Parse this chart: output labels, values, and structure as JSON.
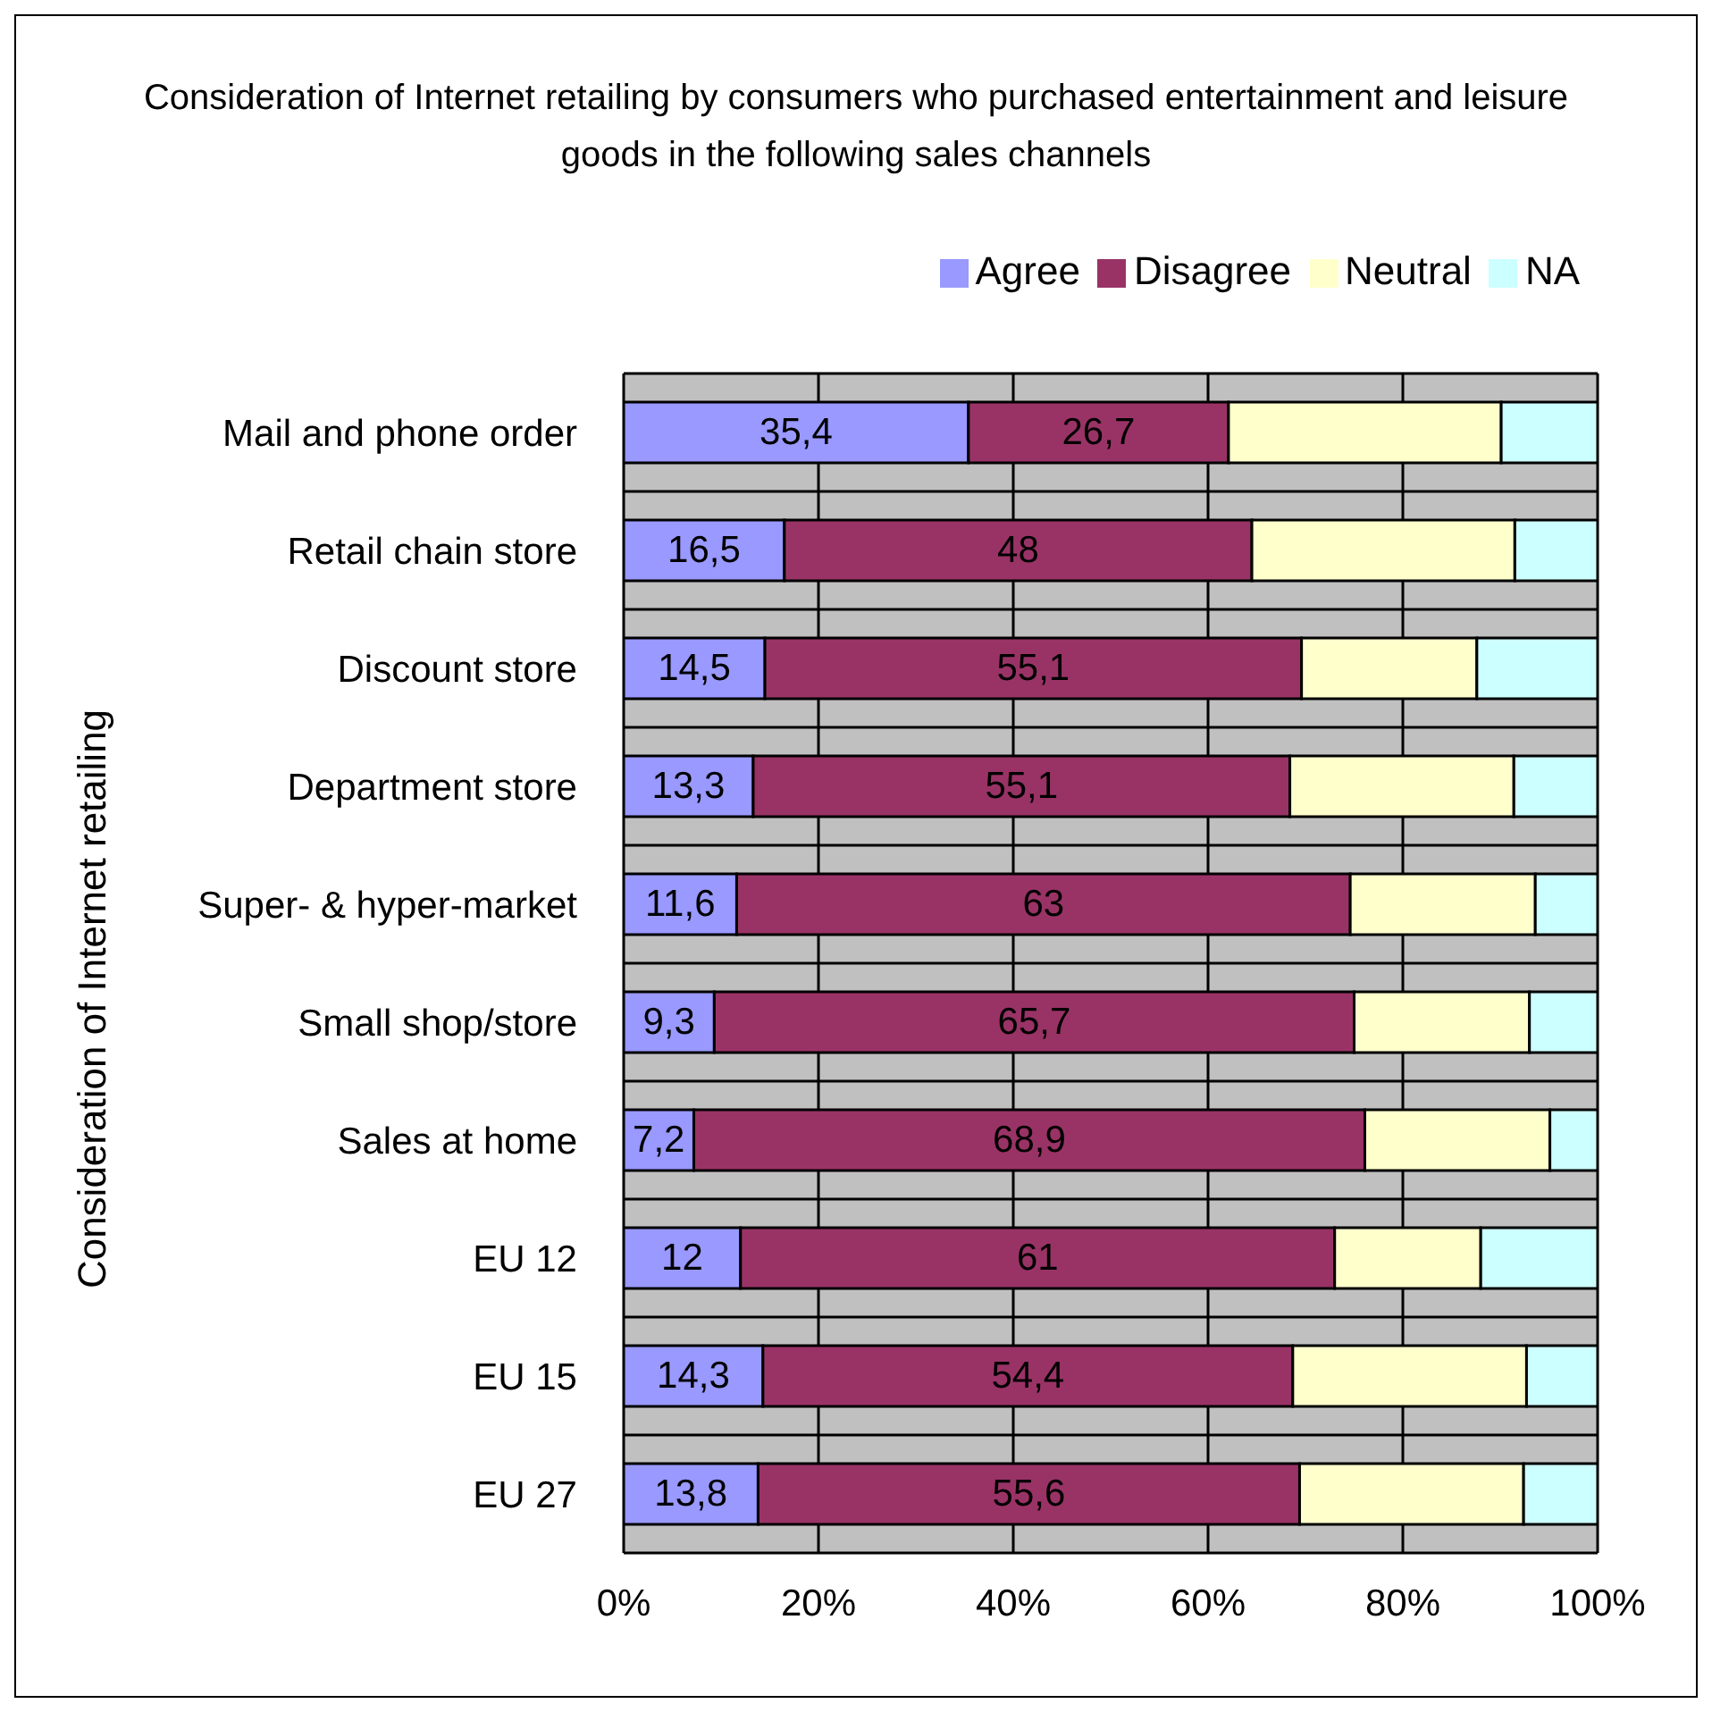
{
  "chart_data": {
    "type": "bar",
    "orientation": "horizontal",
    "stacked": true,
    "title": "Consideration of Internet retailing by consumers who purchased entertainment and leisure goods in the following sales channels",
    "ylabel": "Consideration of Internet retailing",
    "categories": [
      "Mail and phone order",
      "Retail chain store",
      "Discount store",
      "Department store",
      "Super- & hyper-market",
      "Small shop/store",
      "Sales at home",
      "EU 12",
      "EU 15",
      "EU 27"
    ],
    "series": [
      {
        "name": "Agree",
        "color": "#9999ff",
        "values": [
          35.4,
          16.5,
          14.5,
          13.3,
          11.6,
          9.3,
          7.2,
          12,
          14.3,
          13.8
        ],
        "value_labels": [
          "35,4",
          "16,5",
          "14,5",
          "13,3",
          "11,6",
          "9,3",
          "7,2",
          "12",
          "14,3",
          "13,8"
        ]
      },
      {
        "name": "Disagree",
        "color": "#993366",
        "values": [
          26.7,
          48,
          55.1,
          55.1,
          63,
          65.7,
          68.9,
          61,
          54.4,
          55.6
        ],
        "value_labels": [
          "26,7",
          "48",
          "55,1",
          "55,1",
          "63",
          "65,7",
          "68,9",
          "61",
          "54,4",
          "55,6"
        ]
      },
      {
        "name": "Neutral",
        "color": "#ffffcc",
        "values": [
          28,
          27,
          18,
          23,
          19,
          18,
          19,
          15,
          24,
          23
        ]
      },
      {
        "name": "NA",
        "color": "#ccffff",
        "values": [
          9.9,
          8.5,
          12.4,
          8.6,
          6.4,
          7,
          4.9,
          12,
          7.3,
          7.6
        ]
      }
    ],
    "xlim": [
      0,
      100
    ],
    "xticks": [
      {
        "value": 0,
        "label": "0%"
      },
      {
        "value": 20,
        "label": "20%"
      },
      {
        "value": 40,
        "label": "40%"
      },
      {
        "value": 60,
        "label": "60%"
      },
      {
        "value": 80,
        "label": "80%"
      },
      {
        "value": 100,
        "label": "100%"
      }
    ],
    "grid": true,
    "legend": "top"
  }
}
